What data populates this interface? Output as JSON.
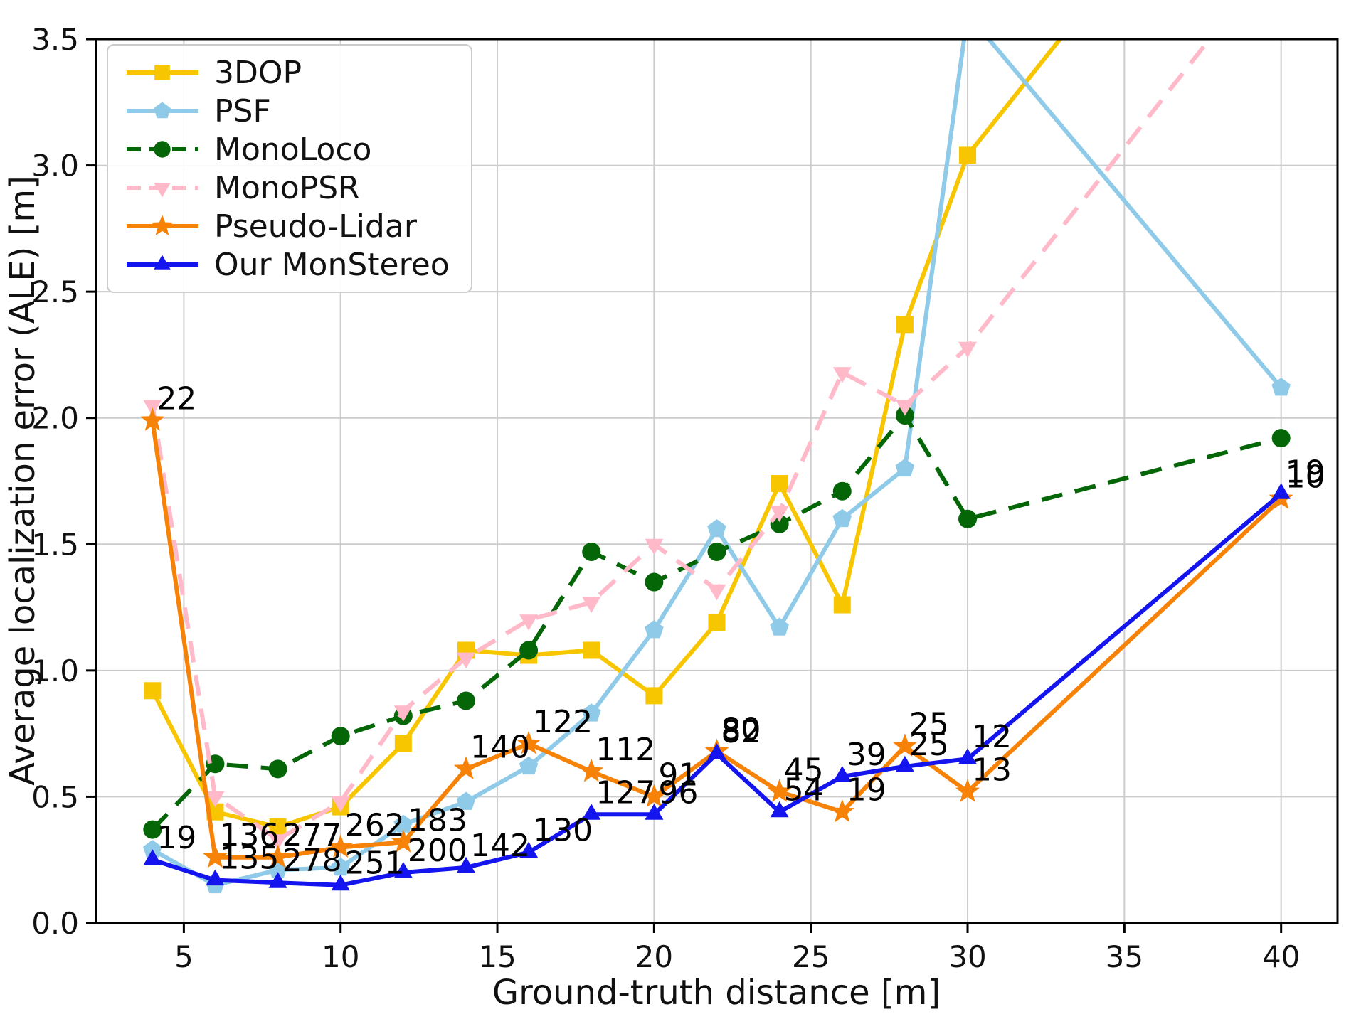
{
  "chart_data": {
    "type": "line",
    "title": "",
    "xlabel": "Ground-truth distance [m]",
    "ylabel": "Average localization error (ALE) [m]",
    "grid": true,
    "legend_position": "upper-left",
    "xlim": [
      2.2,
      41.8
    ],
    "ylim": [
      0,
      3.5
    ],
    "xticks": [
      5,
      10,
      15,
      20,
      25,
      30,
      35,
      40
    ],
    "xtick_labels": [
      "5",
      "10",
      "15",
      "20",
      "25",
      "30",
      "35",
      "40"
    ],
    "yticks": [
      0,
      0.5,
      1.0,
      1.5,
      2.0,
      2.5,
      3.0,
      3.5
    ],
    "ytick_labels": [
      "0.0",
      "0.5",
      "1.0",
      "1.5",
      "2.0",
      "2.5",
      "3.0",
      "3.5"
    ],
    "x": [
      4,
      6,
      8,
      10,
      12,
      14,
      16,
      18,
      20,
      22,
      24,
      26,
      28,
      30,
      40
    ],
    "series": [
      {
        "name": "3DOP",
        "color": "#F7C600",
        "style": "solid",
        "marker": "square",
        "values": [
          0.92,
          0.44,
          0.38,
          0.46,
          0.71,
          1.08,
          1.06,
          1.08,
          0.9,
          1.19,
          1.74,
          1.26,
          2.37,
          3.04,
          4.6
        ]
      },
      {
        "name": "PSF",
        "color": "#8FCBE8",
        "style": "solid",
        "marker": "pentagon",
        "values": [
          0.29,
          0.15,
          0.21,
          0.22,
          0.39,
          0.48,
          0.62,
          0.83,
          1.16,
          1.56,
          1.17,
          1.6,
          1.8,
          3.6,
          2.12
        ]
      },
      {
        "name": "MonoLoco",
        "color": "#056608",
        "style": "dashed",
        "marker": "circle",
        "values": [
          0.37,
          0.63,
          0.61,
          0.74,
          0.82,
          0.88,
          1.08,
          1.47,
          1.35,
          1.47,
          1.58,
          1.71,
          2.01,
          1.6,
          1.92
        ]
      },
      {
        "name": "MonoPSR",
        "color": "#FFB9C8",
        "style": "dashed",
        "marker": "triangle-down",
        "values": [
          2.05,
          0.5,
          0.33,
          0.48,
          0.84,
          1.05,
          1.2,
          1.27,
          1.5,
          1.32,
          1.63,
          2.18,
          2.05,
          2.28,
          3.86
        ]
      },
      {
        "name": "Pseudo-Lidar",
        "color": "#F78208",
        "style": "solid",
        "marker": "star",
        "values": [
          1.99,
          0.26,
          0.26,
          0.3,
          0.32,
          0.61,
          0.71,
          0.6,
          0.5,
          0.68,
          0.52,
          0.44,
          0.7,
          0.52,
          1.68
        ],
        "counts": [
          22,
          136,
          277,
          262,
          183,
          140,
          122,
          112,
          91,
          80,
          45,
          19,
          25,
          13,
          10
        ]
      },
      {
        "name": "Our MonStereo",
        "color": "#1414EE",
        "style": "solid",
        "marker": "triangle-up",
        "values": [
          0.25,
          0.17,
          0.16,
          0.15,
          0.2,
          0.22,
          0.28,
          0.43,
          0.43,
          0.67,
          0.44,
          0.58,
          0.62,
          0.65,
          1.7
        ],
        "counts": [
          19,
          135,
          278,
          251,
          200,
          142,
          130,
          127,
          96,
          82,
          54,
          39,
          25,
          12,
          19
        ]
      }
    ]
  }
}
